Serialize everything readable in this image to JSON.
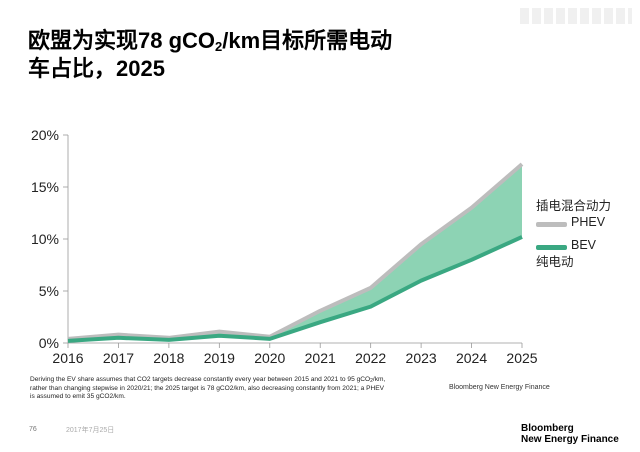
{
  "title": {
    "line1_a": "欧盟为实现78 gCO",
    "line1_sub": "2",
    "line1_b": "/km目标所需电动",
    "line2": "车占比，2025"
  },
  "chart_data": {
    "type": "area",
    "x": [
      "2016",
      "2017",
      "2018",
      "2019",
      "2020",
      "2021",
      "2022",
      "2023",
      "2024",
      "2025"
    ],
    "series": [
      {
        "name": "纯电动 BEV",
        "values": [
          0.2,
          0.5,
          0.3,
          0.7,
          0.4,
          2.0,
          3.5,
          6.0,
          8.0,
          10.2
        ]
      },
      {
        "name": "插电混合动力 PHEV",
        "values": [
          0.2,
          0.3,
          0.2,
          0.4,
          0.2,
          1.1,
          1.8,
          3.5,
          5.0,
          7.0
        ]
      }
    ],
    "stacked": true,
    "yticks": [
      "0%",
      "5%",
      "10%",
      "15%",
      "20%"
    ],
    "ylim": [
      0,
      20
    ],
    "grid": false,
    "colors": {
      "bev": "#3aa882",
      "phev": "#bdbdbd",
      "fill": "#8dd3b4",
      "axis": "#999999"
    }
  },
  "legend": {
    "phev_cn": "插电混合动力",
    "phev_en": "PHEV",
    "bev_en": "BEV",
    "bev_cn": "纯电动"
  },
  "footnote": {
    "line1_a": "Deriving the EV share assumes that CO2 targets decrease constantly every year between 2015 and 2021 to 95 gCO",
    "line1_sub": "2",
    "line1_b": "/km,",
    "line2": "rather than changing stepwise in 2020/21; the 2025 target is 78 gCO2/km, also decreasing constantly from 2021; a PHEV",
    "line3": "is assumed to emit 35 gCO2/km."
  },
  "source": "Bloomberg New Energy Finance",
  "page_number": "76",
  "date": "2017年7月25日",
  "logo": {
    "line1": "Bloomberg",
    "line2": "New Energy Finance"
  }
}
